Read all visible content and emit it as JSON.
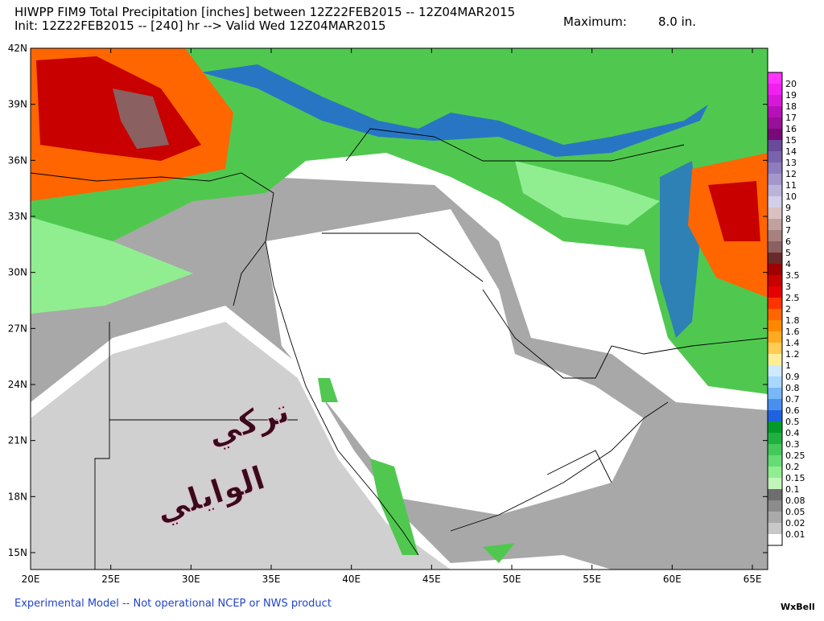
{
  "header": {
    "title": "HIWPP FIM9 Total Precipitation [inches] between 12Z22FEB2015 -- 12Z04MAR2015",
    "subtitle": "Init: 12Z22FEB2015 -- [240] hr --> Valid Wed 12Z04MAR2015",
    "maximum_label": "Maximum:",
    "maximum_value": "8.0 in."
  },
  "map": {
    "lat_labels": [
      "42N",
      "39N",
      "36N",
      "33N",
      "30N",
      "27N",
      "24N",
      "21N",
      "18N",
      "15N"
    ],
    "lon_labels": [
      "20E",
      "25E",
      "30E",
      "35E",
      "40E",
      "45E",
      "50E",
      "55E",
      "60E",
      "65E"
    ],
    "watermark": [
      "تركي",
      "الوايلي"
    ]
  },
  "colorbar": {
    "labels": [
      "20",
      "19",
      "18",
      "17",
      "16",
      "15",
      "14",
      "13",
      "12",
      "11",
      "10",
      "9",
      "8",
      "7",
      "6",
      "5",
      "4",
      "3.5",
      "3",
      "2.5",
      "2",
      "1.8",
      "1.6",
      "1.4",
      "1.2",
      "1",
      "0.9",
      "0.8",
      "0.7",
      "0.6",
      "0.5",
      "0.4",
      "0.3",
      "0.25",
      "0.2",
      "0.15",
      "0.1",
      "0.08",
      "0.05",
      "0.02",
      "0.01"
    ],
    "colors": [
      "#ff33ff",
      "#f020f0",
      "#d818d8",
      "#b810b8",
      "#981098",
      "#780a78",
      "#6a4a9a",
      "#7a63ad",
      "#8e7dbd",
      "#a497cc",
      "#bcb3db",
      "#d4cfe8",
      "#d9c1c1",
      "#c2a0a0",
      "#a88080",
      "#8a6060",
      "#6a2a2a",
      "#a00000",
      "#c80000",
      "#e60000",
      "#ff3300",
      "#ff6600",
      "#ff8800",
      "#ffaa22",
      "#ffcc55",
      "#ffee99",
      "#cfeaff",
      "#a8d8ff",
      "#78b8f8",
      "#4a8ef0",
      "#1e62e0",
      "#009a2a",
      "#20b040",
      "#44c85a",
      "#66dc74",
      "#90ee90",
      "#c2f5bc",
      "#6e6e6e",
      "#8c8c8c",
      "#aaaaaa",
      "#c8c8c8",
      "#ffffff"
    ]
  },
  "footer": {
    "note": "Experimental Model -- Not operational NCEP or NWS product",
    "brand": "WxBell"
  }
}
